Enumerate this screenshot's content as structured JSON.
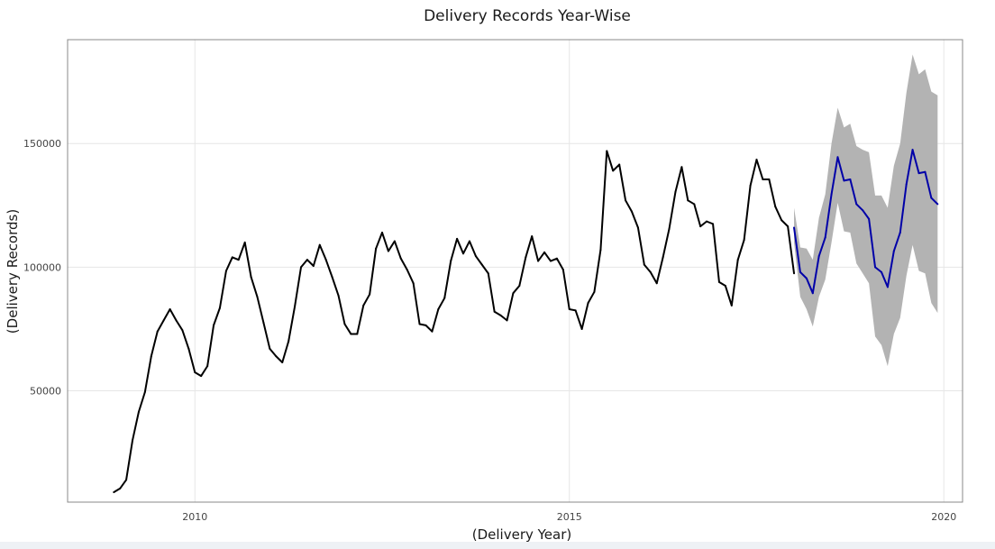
{
  "chart_data": {
    "type": "line",
    "title": "Delivery Records Year-Wise",
    "xlabel": "(Delivery Year)",
    "ylabel": "(Delivery Records)",
    "xlim": [
      2008.3,
      2020.25
    ],
    "ylim": [
      5000,
      192000
    ],
    "xticks": [
      {
        "value": 2010,
        "label": "2010"
      },
      {
        "value": 2015,
        "label": "2015"
      },
      {
        "value": 2020,
        "label": "2020"
      }
    ],
    "yticks": [
      {
        "value": 50000,
        "label": "50000"
      },
      {
        "value": 100000,
        "label": "100000"
      },
      {
        "value": 150000,
        "label": "150000"
      }
    ],
    "grid": true,
    "legend": "none",
    "colors": {
      "actual": "#000000",
      "forecast": "#0000a8",
      "interval": "#b3b3b3",
      "grid": "#e6e6e6",
      "frame": "#888888"
    },
    "series": [
      {
        "role": "actual",
        "x": [
          2008.917,
          2009.0,
          2009.083,
          2009.167,
          2009.25,
          2009.333,
          2009.417,
          2009.5,
          2009.583,
          2009.667,
          2009.75,
          2009.833,
          2009.917,
          2010.0,
          2010.083,
          2010.167,
          2010.25,
          2010.333,
          2010.417,
          2010.5,
          2010.583,
          2010.667,
          2010.75,
          2010.833,
          2010.917,
          2011.0,
          2011.083,
          2011.167,
          2011.25,
          2011.333,
          2011.417,
          2011.5,
          2011.583,
          2011.667,
          2011.75,
          2011.833,
          2011.917,
          2012.0,
          2012.083,
          2012.167,
          2012.25,
          2012.333,
          2012.417,
          2012.5,
          2012.583,
          2012.667,
          2012.75,
          2012.833,
          2012.917,
          2013.0,
          2013.083,
          2013.167,
          2013.25,
          2013.333,
          2013.417,
          2013.5,
          2013.583,
          2013.667,
          2013.75,
          2013.833,
          2013.917,
          2014.0,
          2014.083,
          2014.167,
          2014.25,
          2014.333,
          2014.417,
          2014.5,
          2014.583,
          2014.667,
          2014.75,
          2014.833,
          2014.917,
          2015.0,
          2015.083,
          2015.167,
          2015.25,
          2015.333,
          2015.417,
          2015.5,
          2015.583,
          2015.667,
          2015.75,
          2015.833,
          2015.917,
          2016.0,
          2016.083,
          2016.167,
          2016.25,
          2016.333,
          2016.417,
          2016.5,
          2016.583,
          2016.667,
          2016.75,
          2016.833,
          2016.917,
          2017.0,
          2017.083,
          2017.167,
          2017.25,
          2017.333,
          2017.417,
          2017.5,
          2017.583,
          2017.667,
          2017.75,
          2017.833,
          2017.917,
          2018.0
        ],
        "values": [
          9000,
          10500,
          14000,
          30000,
          41500,
          49500,
          64000,
          74000,
          78500,
          83000,
          78500,
          74500,
          67000,
          57500,
          56000,
          60000,
          76500,
          83500,
          98500,
          104000,
          103000,
          110000,
          96000,
          88000,
          77500,
          67000,
          64000,
          61500,
          70000,
          84000,
          100000,
          103000,
          100500,
          109000,
          103000,
          96000,
          88500,
          77000,
          73000,
          73000,
          84500,
          89000,
          107500,
          114000,
          106500,
          110500,
          103500,
          99000,
          93500,
          77000,
          76500,
          74000,
          83000,
          87500,
          102500,
          111500,
          105500,
          110500,
          104500,
          101000,
          97500,
          82000,
          80500,
          78500,
          89500,
          92500,
          104000,
          112500,
          102500,
          106000,
          102500,
          103500,
          99000,
          83000,
          82500,
          75000,
          85500,
          90000,
          107000,
          147000,
          139000,
          141500,
          127000,
          122500,
          116000,
          101000,
          98000,
          93500,
          104000,
          115500,
          130500,
          140500,
          127000,
          125500,
          116500,
          118500,
          117500,
          94000,
          92500,
          84500,
          103000,
          111000,
          133000,
          143500,
          135500,
          135500,
          124500,
          119000,
          116500,
          97500
        ]
      },
      {
        "role": "forecast",
        "x": [
          2018.0,
          2018.083,
          2018.167,
          2018.25,
          2018.333,
          2018.417,
          2018.5,
          2018.583,
          2018.667,
          2018.75,
          2018.833,
          2018.917,
          2019.0,
          2019.083,
          2019.167,
          2019.25,
          2019.333,
          2019.417,
          2019.5,
          2019.583,
          2019.667,
          2019.75,
          2019.833,
          2019.917
        ],
        "values": [
          116000,
          98000,
          95500,
          89500,
          104500,
          112000,
          129500,
          144500,
          135000,
          135500,
          125500,
          123000,
          119500,
          100000,
          98000,
          92000,
          106500,
          114000,
          133500,
          147500,
          138000,
          138500,
          128000,
          125500
        ],
        "lower": [
          110000,
          88000,
          83000,
          76000,
          88000,
          95000,
          110000,
          126000,
          114500,
          114000,
          101500,
          97500,
          93500,
          72000,
          68500,
          60000,
          73000,
          79500,
          96500,
          109000,
          98500,
          97500,
          85500,
          81500
        ],
        "upper": [
          124000,
          108000,
          107500,
          103000,
          120000,
          129500,
          150000,
          164500,
          156500,
          158000,
          149000,
          147500,
          146500,
          129000,
          129000,
          124000,
          141000,
          150000,
          170500,
          186000,
          178000,
          180000,
          171000,
          169500
        ]
      }
    ]
  }
}
